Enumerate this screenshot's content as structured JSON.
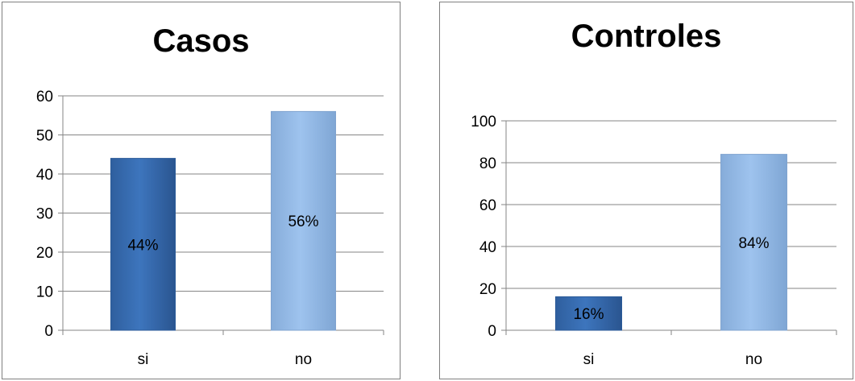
{
  "chart_data": [
    {
      "type": "bar",
      "title": "Casos",
      "categories": [
        "si",
        "no"
      ],
      "values": [
        44,
        56
      ],
      "data_labels": [
        "44%",
        "56%"
      ],
      "ylim": [
        0,
        60
      ],
      "yticks": [
        0,
        10,
        20,
        30,
        40,
        50,
        60
      ],
      "ytick_labels": [
        "0",
        "10",
        "20",
        "30",
        "40",
        "50",
        "60"
      ],
      "grid": true,
      "colors": [
        "#3d75bd",
        "#9ec3ee"
      ]
    },
    {
      "type": "bar",
      "title": "Controles",
      "categories": [
        "si",
        "no"
      ],
      "values": [
        16,
        84
      ],
      "data_labels": [
        "16%",
        "84%"
      ],
      "ylim": [
        0,
        100
      ],
      "yticks": [
        0,
        20,
        40,
        60,
        80,
        100
      ],
      "ytick_labels": [
        "0",
        "20",
        "40",
        "60",
        "80",
        "100"
      ],
      "grid": true,
      "colors": [
        "#3d75bd",
        "#9ec3ee"
      ]
    }
  ]
}
